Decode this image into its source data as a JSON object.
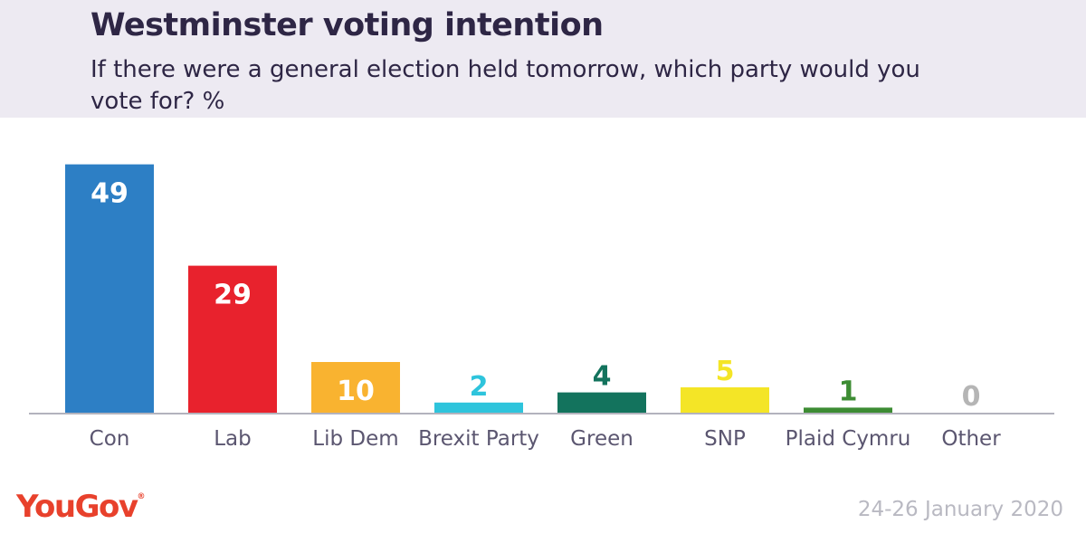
{
  "header": {
    "title": "Westminster voting intention",
    "subtitle": "If there were a general election held tomorrow, which party would you vote for? %"
  },
  "footer": {
    "logo": "YouGov",
    "date": "24-26 January 2020"
  },
  "colors": {
    "header_bg": "#edeaf2",
    "title": "#2e2645",
    "logo": "#e8412c",
    "axis": "#b3b3bd",
    "category_label": "#5b5670"
  },
  "chart_data": {
    "type": "bar",
    "title": "Westminster voting intention",
    "subtitle": "If there were a general election held tomorrow, which party would you vote for? %",
    "categories": [
      "Con",
      "Lab",
      "Lib Dem",
      "Brexit Party",
      "Green",
      "SNP",
      "Plaid Cymru",
      "Other"
    ],
    "values": [
      49,
      29,
      10,
      2,
      4,
      5,
      1,
      0
    ],
    "colors": [
      "#2d7fc5",
      "#e8222d",
      "#f9b330",
      "#2ec4dc",
      "#13735d",
      "#f4e526",
      "#3d8c33",
      "#b5b5b5"
    ],
    "label_colors": [
      "#ffffff",
      "#ffffff",
      "#ffffff",
      "#2ec4dc",
      "#13735d",
      "#f4e526",
      "#3d8c33",
      "#b5b5b5"
    ],
    "labels_inside": [
      true,
      true,
      true,
      false,
      false,
      false,
      false,
      false
    ],
    "xlabel": "",
    "ylabel": "",
    "ylim": [
      0,
      50
    ],
    "grid": false,
    "legend": "none"
  }
}
